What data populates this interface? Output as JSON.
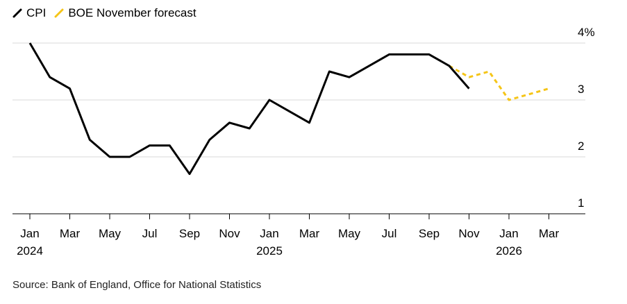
{
  "chart_data": {
    "type": "line",
    "title": "",
    "xlabel": "",
    "ylabel": "",
    "ylim": [
      1,
      4
    ],
    "y_ticks": [
      {
        "value": 4,
        "label": "4%"
      },
      {
        "value": 3,
        "label": "3"
      },
      {
        "value": 2,
        "label": "2"
      },
      {
        "value": 1,
        "label": "1"
      }
    ],
    "x_ticks": [
      {
        "date": "2024-01",
        "label": "Jan",
        "year_label": "2024"
      },
      {
        "date": "2024-03",
        "label": "Mar",
        "year_label": ""
      },
      {
        "date": "2024-05",
        "label": "May",
        "year_label": ""
      },
      {
        "date": "2024-07",
        "label": "Jul",
        "year_label": ""
      },
      {
        "date": "2024-09",
        "label": "Sep",
        "year_label": ""
      },
      {
        "date": "2024-11",
        "label": "Nov",
        "year_label": ""
      },
      {
        "date": "2025-01",
        "label": "Jan",
        "year_label": "2025"
      },
      {
        "date": "2025-03",
        "label": "Mar",
        "year_label": ""
      },
      {
        "date": "2025-05",
        "label": "May",
        "year_label": ""
      },
      {
        "date": "2025-07",
        "label": "Jul",
        "year_label": ""
      },
      {
        "date": "2025-09",
        "label": "Sep",
        "year_label": ""
      },
      {
        "date": "2025-11",
        "label": "Nov",
        "year_label": ""
      },
      {
        "date": "2026-01",
        "label": "Jan",
        "year_label": "2026"
      },
      {
        "date": "2026-03",
        "label": "Mar",
        "year_label": ""
      }
    ],
    "grid": true,
    "legend_position": "top-left",
    "series": [
      {
        "name": "CPI",
        "color": "#000000",
        "style": "solid",
        "x": [
          "2024-01",
          "2024-02",
          "2024-03",
          "2024-04",
          "2024-05",
          "2024-06",
          "2024-07",
          "2024-08",
          "2024-09",
          "2024-10",
          "2024-11",
          "2024-12",
          "2025-01",
          "2025-02",
          "2025-03",
          "2025-04",
          "2025-05",
          "2025-06",
          "2025-07",
          "2025-08",
          "2025-09",
          "2025-10",
          "2025-11"
        ],
        "values": [
          4.0,
          3.4,
          3.2,
          2.3,
          2.0,
          2.0,
          2.2,
          2.2,
          1.7,
          2.3,
          2.6,
          2.5,
          3.0,
          2.8,
          2.6,
          3.5,
          3.4,
          3.6,
          3.8,
          3.8,
          3.8,
          3.6,
          3.2
        ]
      },
      {
        "name": "BOE November forecast",
        "color": "#f5c518",
        "style": "dashed",
        "x": [
          "2025-10",
          "2025-11",
          "2025-12",
          "2026-01",
          "2026-02",
          "2026-03"
        ],
        "values": [
          3.6,
          3.4,
          3.5,
          3.0,
          3.1,
          3.2
        ]
      }
    ]
  },
  "source": "Source: Bank of England, Office for National Statistics"
}
